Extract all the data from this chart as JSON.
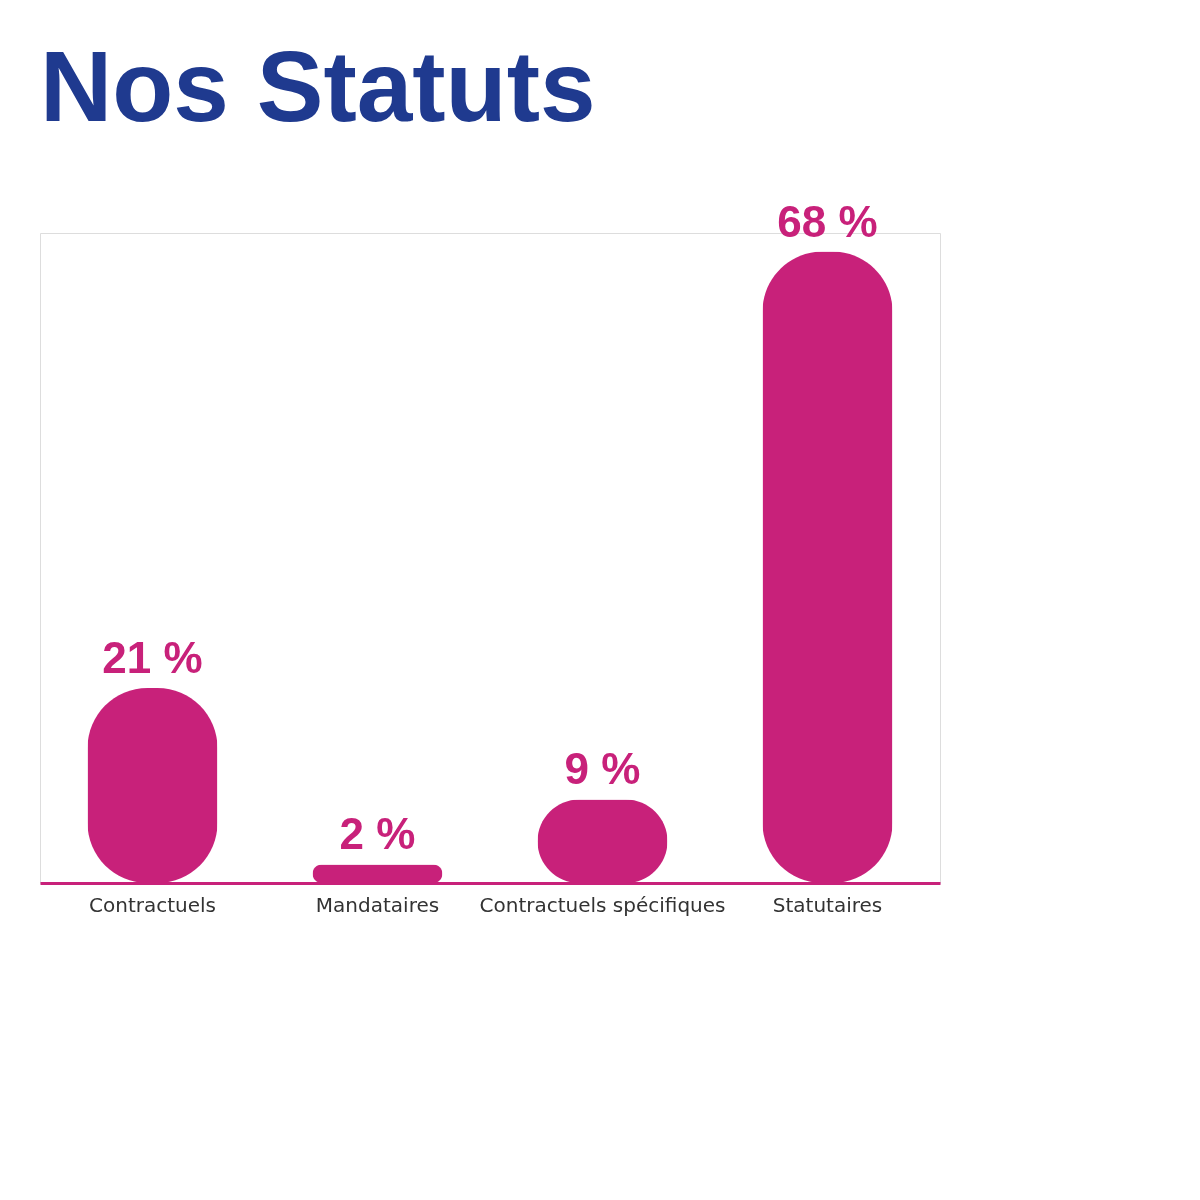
{
  "chart_data": {
    "type": "bar",
    "title": "Nos Statuts",
    "categories": [
      "Contractuels",
      "Mandataires",
      "Contractuels spécifiques",
      "Statutaires"
    ],
    "values": [
      21,
      2,
      9,
      68
    ],
    "value_labels": [
      "21 %",
      "2 %",
      "9 %",
      "68 %"
    ],
    "color": "#c8217a"
  }
}
